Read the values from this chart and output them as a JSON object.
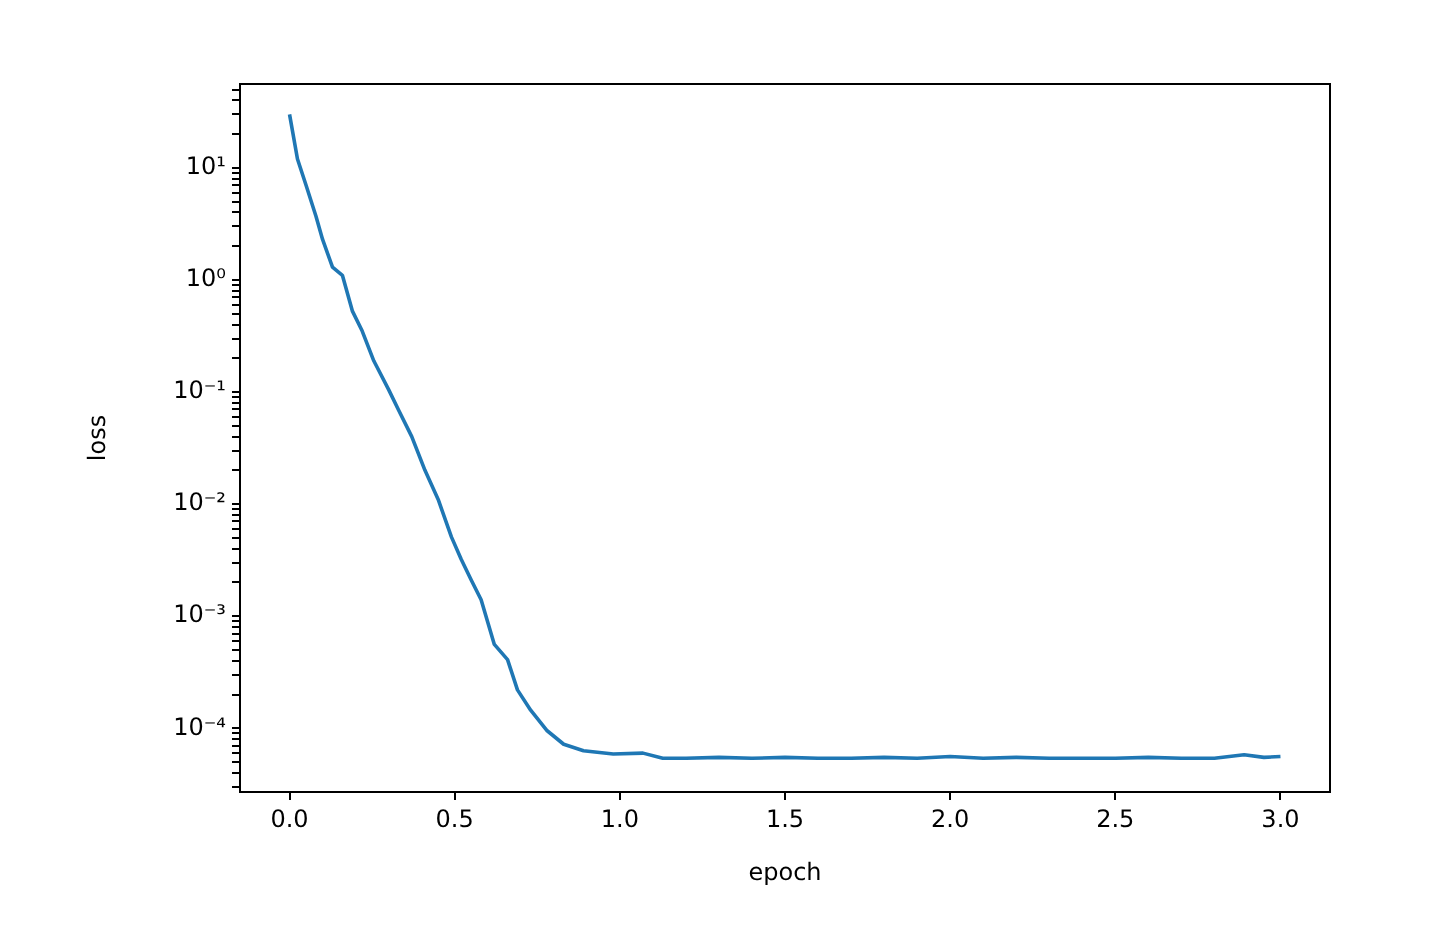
{
  "chart_data": {
    "type": "line",
    "xlabel": "epoch",
    "ylabel": "loss",
    "log": "y",
    "xlim": [
      -0.15,
      3.15
    ],
    "ylim": [
      2.7e-05,
      56
    ],
    "xticks": [
      {
        "value": 0,
        "label": "0.0"
      },
      {
        "value": 0.5,
        "label": "0.5"
      },
      {
        "value": 1,
        "label": "1.0"
      },
      {
        "value": 1.5,
        "label": "1.5"
      },
      {
        "value": 2,
        "label": "2.0"
      },
      {
        "value": 2.5,
        "label": "2.5"
      },
      {
        "value": 3,
        "label": "3.0"
      }
    ],
    "yticks": [
      {
        "value": 0.0001,
        "label": "10⁻⁴"
      },
      {
        "value": 0.001,
        "label": "10⁻³"
      },
      {
        "value": 0.01,
        "label": "10⁻²"
      },
      {
        "value": 0.1,
        "label": "10⁻¹"
      },
      {
        "value": 1,
        "label": "10⁰"
      },
      {
        "value": 10,
        "label": "10¹"
      },
      {
        "value": 3e-05,
        "label": null
      },
      {
        "value": 4e-05,
        "label": null
      },
      {
        "value": 5e-05,
        "label": null
      },
      {
        "value": 6e-05,
        "label": null
      },
      {
        "value": 7e-05,
        "label": null
      },
      {
        "value": 8e-05,
        "label": null
      },
      {
        "value": 9e-05,
        "label": null
      },
      {
        "value": 0.0002,
        "label": null
      },
      {
        "value": 0.0003,
        "label": null
      },
      {
        "value": 0.0004,
        "label": null
      },
      {
        "value": 0.0005,
        "label": null
      },
      {
        "value": 0.0006,
        "label": null
      },
      {
        "value": 0.0007,
        "label": null
      },
      {
        "value": 0.0008,
        "label": null
      },
      {
        "value": 0.0009,
        "label": null
      },
      {
        "value": 0.002,
        "label": null
      },
      {
        "value": 0.003,
        "label": null
      },
      {
        "value": 0.004,
        "label": null
      },
      {
        "value": 0.005,
        "label": null
      },
      {
        "value": 0.006,
        "label": null
      },
      {
        "value": 0.007,
        "label": null
      },
      {
        "value": 0.008,
        "label": null
      },
      {
        "value": 0.009,
        "label": null
      },
      {
        "value": 0.02,
        "label": null
      },
      {
        "value": 0.03,
        "label": null
      },
      {
        "value": 0.04,
        "label": null
      },
      {
        "value": 0.05,
        "label": null
      },
      {
        "value": 0.06,
        "label": null
      },
      {
        "value": 0.07,
        "label": null
      },
      {
        "value": 0.08,
        "label": null
      },
      {
        "value": 0.09,
        "label": null
      },
      {
        "value": 0.2,
        "label": null
      },
      {
        "value": 0.3,
        "label": null
      },
      {
        "value": 0.4,
        "label": null
      },
      {
        "value": 0.5,
        "label": null
      },
      {
        "value": 0.6,
        "label": null
      },
      {
        "value": 0.7,
        "label": null
      },
      {
        "value": 0.8,
        "label": null
      },
      {
        "value": 0.9,
        "label": null
      },
      {
        "value": 2,
        "label": null
      },
      {
        "value": 3,
        "label": null
      },
      {
        "value": 4,
        "label": null
      },
      {
        "value": 5,
        "label": null
      },
      {
        "value": 6,
        "label": null
      },
      {
        "value": 7,
        "label": null
      },
      {
        "value": 8,
        "label": null
      },
      {
        "value": 9,
        "label": null
      },
      {
        "value": 20,
        "label": null
      },
      {
        "value": 30,
        "label": null
      },
      {
        "value": 40,
        "label": null
      },
      {
        "value": 50,
        "label": null
      }
    ],
    "series": [
      {
        "color": "#1f77b4",
        "x": [
          0,
          0.024,
          0.05,
          0.08,
          0.1,
          0.13,
          0.16,
          0.19,
          0.22,
          0.255,
          0.3,
          0.33,
          0.37,
          0.41,
          0.45,
          0.49,
          0.52,
          0.55,
          0.58,
          0.62,
          0.66,
          0.69,
          0.73,
          0.78,
          0.83,
          0.89,
          0.98,
          1.07,
          1.13,
          1.2,
          1.3,
          1.4,
          1.5,
          1.6,
          1.7,
          1.8,
          1.9,
          2.0,
          2.1,
          2.2,
          2.3,
          2.4,
          2.5,
          2.6,
          2.7,
          2.8,
          2.89,
          2.95,
          3.0
        ],
        "values": [
          30,
          12,
          7,
          3.7,
          2.3,
          1.3,
          1.1,
          0.53,
          0.35,
          0.19,
          0.105,
          0.069,
          0.04,
          0.02,
          0.011,
          0.0051,
          0.0032,
          0.0021,
          0.0014,
          0.00056,
          0.00041,
          0.00022,
          0.000145,
          9.5e-05,
          7.2e-05,
          6.3e-05,
          5.9e-05,
          6e-05,
          5.4e-05,
          5.4e-05,
          5.5e-05,
          5.4e-05,
          5.5e-05,
          5.4e-05,
          5.4e-05,
          5.5e-05,
          5.4e-05,
          5.6e-05,
          5.4e-05,
          5.5e-05,
          5.4e-05,
          5.4e-05,
          5.4e-05,
          5.5e-05,
          5.4e-05,
          5.4e-05,
          5.8e-05,
          5.5e-05,
          5.6e-05
        ]
      }
    ]
  }
}
